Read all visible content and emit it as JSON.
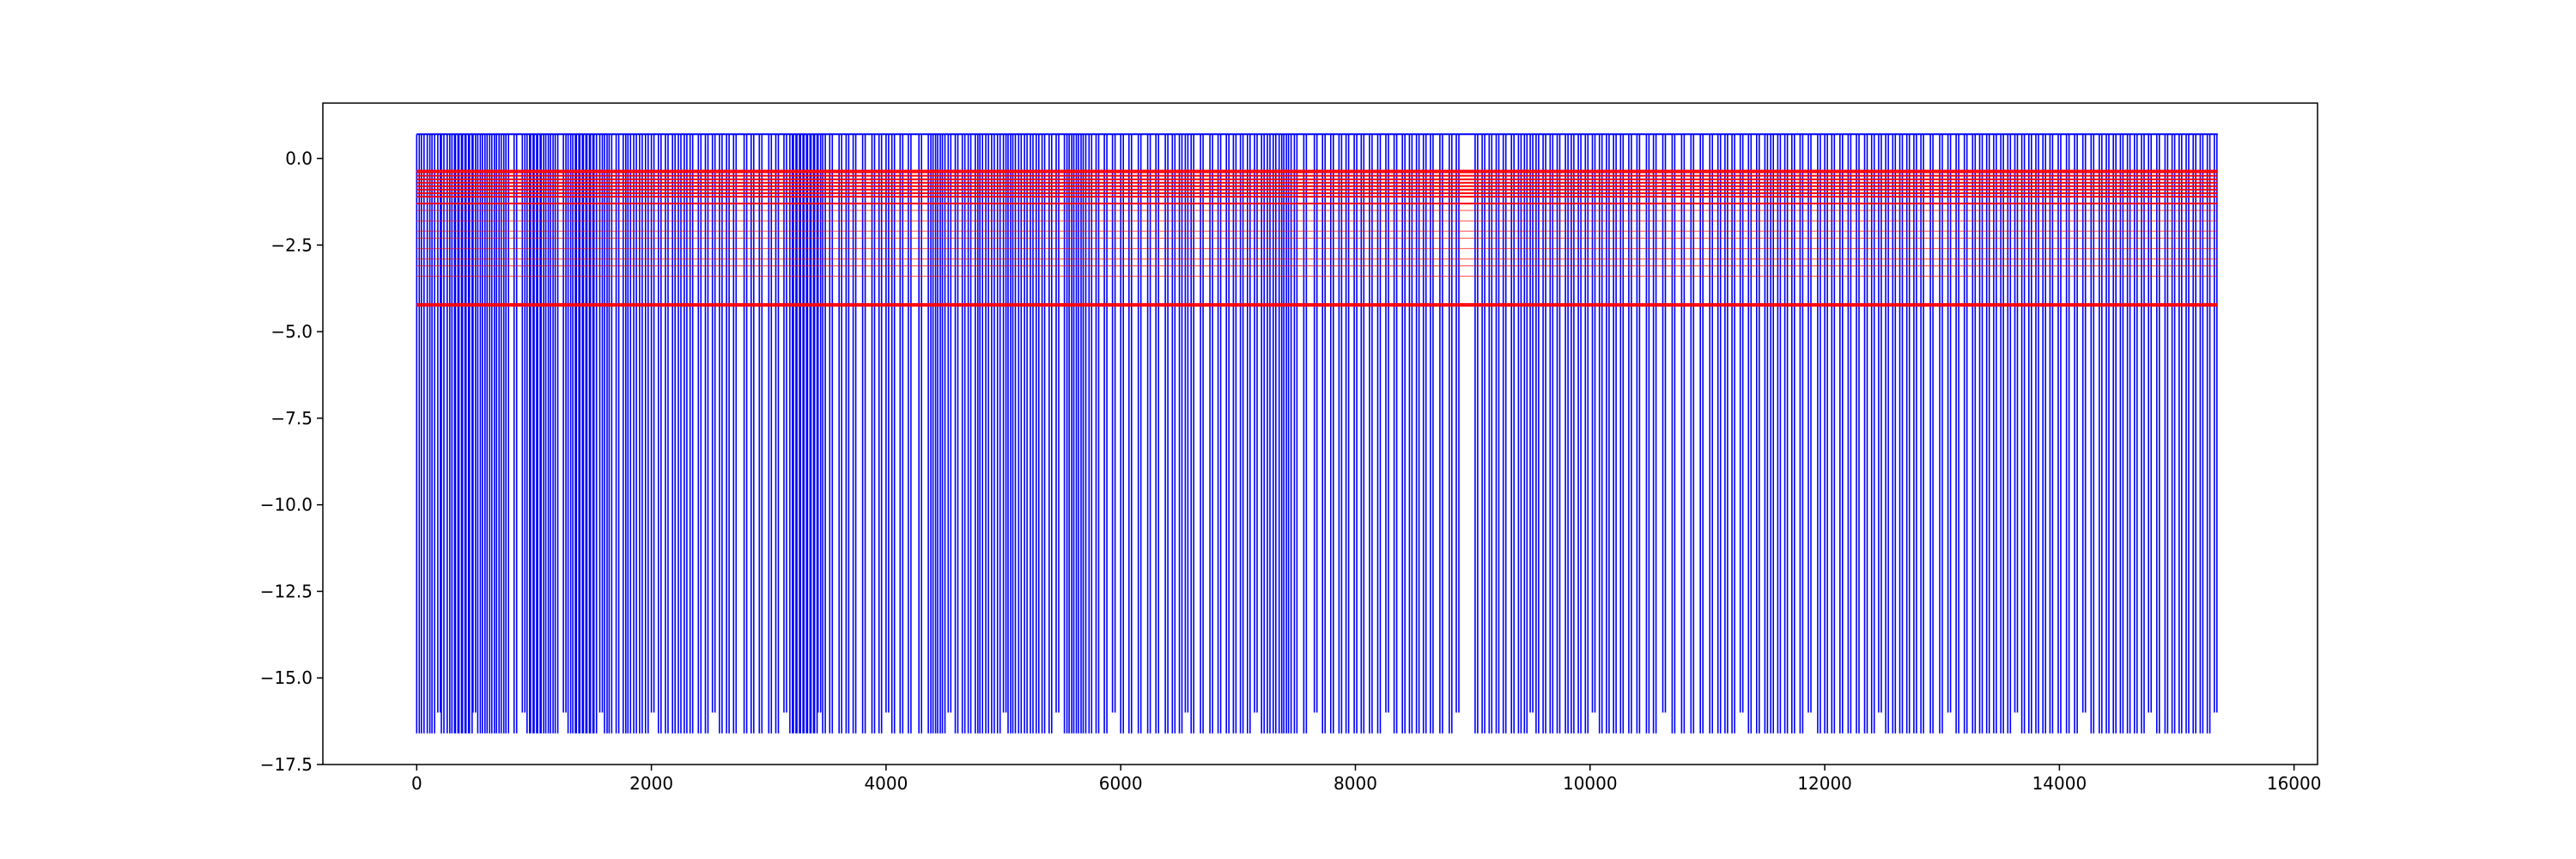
{
  "chart_data": {
    "type": "line",
    "title": "",
    "xlabel": "",
    "ylabel": "",
    "xlim": [
      -800,
      16200
    ],
    "ylim": [
      -17.5,
      1.6
    ],
    "x_ticks": [
      0,
      2000,
      4000,
      6000,
      8000,
      10000,
      12000,
      14000,
      16000
    ],
    "x_tick_labels": [
      "0",
      "2000",
      "4000",
      "6000",
      "8000",
      "10000",
      "12000",
      "14000",
      "16000"
    ],
    "y_ticks": [
      0.0,
      -2.5,
      -5.0,
      -7.5,
      -10.0,
      -12.5,
      -15.0,
      -17.5
    ],
    "y_tick_labels": [
      "0.0",
      "−2.5",
      "−5.0",
      "−7.5",
      "−10.0",
      "−12.5",
      "−15.0",
      "−17.5"
    ],
    "grid": false,
    "legend": "none",
    "series": [
      {
        "color": "#0000ff",
        "x_range": [
          0,
          15350
        ],
        "y_high": 0.7,
        "y_low": -16.6,
        "y_mid": -16.0,
        "drop_x": [
          0,
          40,
          90,
          130,
          180,
          210,
          260,
          300,
          330,
          360,
          390,
          420,
          450,
          480,
          520,
          560,
          600,
          640,
          680,
          720,
          760,
          830,
          900,
          940,
          970,
          1000,
          1030,
          1060,
          1100,
          1140,
          1180,
          1250,
          1290,
          1330,
          1360,
          1390,
          1420,
          1450,
          1480,
          1510,
          1560,
          1600,
          1640,
          1700,
          1760,
          1800,
          1850,
          1900,
          1950,
          2000,
          2060,
          2120,
          2180,
          2230,
          2280,
          2330,
          2400,
          2460,
          2520,
          2580,
          2640,
          2700,
          2790,
          2850,
          2920,
          3000,
          3060,
          3130,
          3180,
          3210,
          3240,
          3270,
          3300,
          3330,
          3360,
          3390,
          3420,
          3460,
          3520,
          3600,
          3660,
          3720,
          3800,
          3880,
          3940,
          4000,
          4050,
          4120,
          4190,
          4280,
          4360,
          4400,
          4440,
          4480,
          4530,
          4590,
          4650,
          4700,
          4760,
          4800,
          4850,
          4900,
          4950,
          5000,
          5040,
          5080,
          5130,
          5180,
          5230,
          5280,
          5330,
          5390,
          5450,
          5520,
          5560,
          5600,
          5640,
          5680,
          5730,
          5790,
          5860,
          5930,
          6000,
          6070,
          6150,
          6230,
          6300,
          6380,
          6440,
          6500,
          6550,
          6600,
          6680,
          6760,
          6830,
          6900,
          6960,
          7020,
          7080,
          7140,
          7200,
          7250,
          7300,
          7350,
          7390,
          7430,
          7480,
          7560,
          7650,
          7720,
          7790,
          7860,
          7920,
          7990,
          8050,
          8120,
          8190,
          8260,
          8330,
          8400,
          8460,
          8520,
          8580,
          8640,
          8720,
          8800,
          8860,
          9020,
          9080,
          9140,
          9200,
          9260,
          9330,
          9390,
          9440,
          9490,
          9540,
          9600,
          9660,
          9720,
          9790,
          9840,
          9900,
          9960,
          10020,
          10080,
          10140,
          10200,
          10260,
          10330,
          10400,
          10480,
          10540,
          10620,
          10700,
          10780,
          10860,
          10940,
          11020,
          11090,
          11150,
          11210,
          11280,
          11350,
          11420,
          11490,
          11540,
          11600,
          11660,
          11720,
          11790,
          11860,
          11940,
          12000,
          12060,
          12130,
          12200,
          12270,
          12340,
          12400,
          12460,
          12520,
          12580,
          12640,
          12700,
          12760,
          12820,
          12900,
          12980,
          13050,
          13120,
          13190,
          13260,
          13320,
          13380,
          13440,
          13500,
          13560,
          13620,
          13680,
          13740,
          13800,
          13860,
          13920,
          13990,
          14060,
          14130,
          14200,
          14270,
          14340,
          14400,
          14460,
          14520,
          14580,
          14640,
          14700,
          14760,
          14830,
          14900,
          14960,
          15020,
          15080,
          15140,
          15200,
          15260,
          15320
        ]
      },
      {
        "color": "#ff0000",
        "x_range": [
          0,
          15350
        ],
        "y_levels": [
          -0.35,
          -0.4,
          -0.5,
          -0.6,
          -0.7,
          -0.8,
          -0.9,
          -1.0,
          -1.1,
          -1.3,
          -1.5,
          -1.8,
          -2.1,
          -2.3,
          -2.6,
          -2.9,
          -3.1,
          -3.4,
          -4.2,
          -4.25
        ]
      }
    ]
  }
}
